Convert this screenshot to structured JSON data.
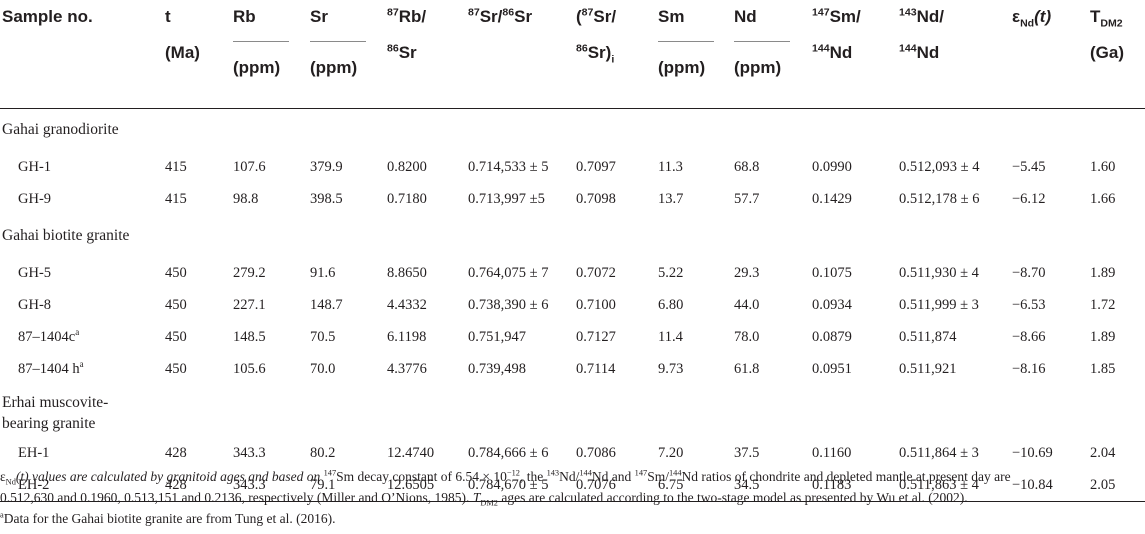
{
  "table": {
    "headers": [
      {
        "key": "sample",
        "line1": "Sample no.",
        "unit": ""
      },
      {
        "key": "t",
        "line1": "t",
        "line2": "(Ma)",
        "unit": ""
      },
      {
        "key": "rb",
        "line1": "Rb",
        "unit": "(ppm)"
      },
      {
        "key": "sr",
        "line1": "Sr",
        "unit": "(ppm)"
      },
      {
        "key": "rbsr",
        "line1_sup": "87",
        "line1_text": "Rb/",
        "line2_sup": "86",
        "line2_text": "Sr",
        "unit": ""
      },
      {
        "key": "srsr",
        "sup1": "87",
        "text1": "Sr/",
        "sup2": "86",
        "text2": "Sr",
        "unit": ""
      },
      {
        "key": "srsr_i",
        "line1_pre": "(",
        "line1_sup": "87",
        "line1_text": "Sr/",
        "line2_sup": "86",
        "line2_text": "Sr)",
        "line2_sub": "i",
        "unit": ""
      },
      {
        "key": "sm",
        "line1": "Sm",
        "unit": "(ppm)"
      },
      {
        "key": "nd",
        "line1": "Nd",
        "unit": "(ppm)"
      },
      {
        "key": "smnd",
        "line1_sup": "147",
        "line1_text": "Sm/",
        "line2_sup": "144",
        "line2_text": "Nd",
        "unit": ""
      },
      {
        "key": "ndnd",
        "line1_sup": "143",
        "line1_text": "Nd/",
        "line2_sup": "144",
        "line2_text": "Nd",
        "unit": ""
      },
      {
        "key": "eps",
        "line1_sym": "ε",
        "line1_sub": "Nd",
        "line1_text": "(t)",
        "unit": ""
      },
      {
        "key": "tdm",
        "line1_text": "T",
        "line1_sub": "DM2",
        "line2": "(Ga)",
        "unit": ""
      }
    ],
    "sections": [
      {
        "title": "Gahai granodiorite",
        "rows": [
          {
            "sample": "GH-1",
            "sample_sup": "",
            "t": "415",
            "rb": "107.6",
            "sr": "379.9",
            "rbsr": "0.8200",
            "srsr": "0.714,533 ± 5",
            "srsr_i": "0.7097",
            "sm": "11.3",
            "nd": "68.8",
            "smnd": "0.0990",
            "ndnd": "0.512,093 ± 4",
            "eps": "−5.45",
            "tdm": "1.60"
          },
          {
            "sample": "GH-9",
            "sample_sup": "",
            "t": "415",
            "rb": "98.8",
            "sr": "398.5",
            "rbsr": "0.7180",
            "srsr": "0.713,997 ±5",
            "srsr_i": "0.7098",
            "sm": "13.7",
            "nd": "57.7",
            "smnd": "0.1429",
            "ndnd": "0.512,178 ± 6",
            "eps": "−6.12",
            "tdm": "1.66"
          }
        ]
      },
      {
        "title": "Gahai biotite granite",
        "rows": [
          {
            "sample": "GH-5",
            "sample_sup": "",
            "t": "450",
            "rb": "279.2",
            "sr": "91.6",
            "rbsr": "8.8650",
            "srsr": "0.764,075 ± 7",
            "srsr_i": "0.7072",
            "sm": "5.22",
            "nd": "29.3",
            "smnd": "0.1075",
            "ndnd": "0.511,930 ± 4",
            "eps": "−8.70",
            "tdm": "1.89"
          },
          {
            "sample": "GH-8",
            "sample_sup": "",
            "t": "450",
            "rb": "227.1",
            "sr": "148.7",
            "rbsr": "4.4332",
            "srsr": "0.738,390 ± 6",
            "srsr_i": "0.7100",
            "sm": "6.80",
            "nd": "44.0",
            "smnd": "0.0934",
            "ndnd": "0.511,999 ± 3",
            "eps": "−6.53",
            "tdm": "1.72"
          },
          {
            "sample": "87–1404c",
            "sample_sup": "a",
            "t": "450",
            "rb": "148.5",
            "sr": "70.5",
            "rbsr": "6.1198",
            "srsr": "0.751,947",
            "srsr_i": "0.7127",
            "sm": "11.4",
            "nd": "78.0",
            "smnd": "0.0879",
            "ndnd": "0.511,874",
            "eps": "−8.66",
            "tdm": "1.89"
          },
          {
            "sample": "87–1404 h",
            "sample_sup": "a",
            "t": "450",
            "rb": "105.6",
            "sr": "70.0",
            "rbsr": "4.3776",
            "srsr": "0.739,498",
            "srsr_i": "0.7114",
            "sm": "9.73",
            "nd": "61.8",
            "smnd": "0.0951",
            "ndnd": "0.511,921",
            "eps": "−8.16",
            "tdm": "1.85"
          }
        ]
      },
      {
        "title_line1": "Erhai muscovite-",
        "title_line2": "bearing granite",
        "rows": [
          {
            "sample": "EH-1",
            "sample_sup": "",
            "t": "428",
            "rb": "343.3",
            "sr": "80.2",
            "rbsr": "12.4740",
            "srsr": "0.784,666 ± 6",
            "srsr_i": "0.7086",
            "sm": "7.20",
            "nd": "37.5",
            "smnd": "0.1160",
            "ndnd": "0.511,864 ± 3",
            "eps": "−10.69",
            "tdm": "2.04"
          },
          {
            "sample": "EH-2",
            "sample_sup": "",
            "t": "428",
            "rb": "343.3",
            "sr": "79.1",
            "rbsr": "12.6505",
            "srsr": "0.784,670 ± 5",
            "srsr_i": "0.7076",
            "sm": "6.75",
            "nd": "34.5",
            "smnd": "0.1183",
            "ndnd": "0.511,863 ± 4",
            "eps": "−10.84",
            "tdm": "2.05"
          }
        ]
      }
    ]
  },
  "footnotes": {
    "n1_sym": "ε",
    "n1_sub": "Nd",
    "n1_a": "(t) values are calculated by granitoid ages and based on ",
    "n1_sup1": "147",
    "n1_b": "Sm decay constant of 6.54 × 10",
    "n1_sup2": "−12",
    "n1_c": ", the ",
    "n1_sup3": "143",
    "n1_d": "Nd/",
    "n1_sup4": "144",
    "n1_e": "Nd and ",
    "n1_sup5": "147",
    "n1_f": "Sm/",
    "n1_sup6": "144",
    "n1_g": "Nd ratios of chondrite and depleted mantle at present day are",
    "n2": "0.512,630 and 0.1960, 0.513,151 and 0.2136, respectively (Miller and O’Nions, 1985). ",
    "n2_t": "T",
    "n2_sub": "DM2",
    "n2_b": " ages are calculated according to the two-stage model as presented by Wu et al. (2002).",
    "n3_sup": "a",
    "n3": "Data for the Gahai biotite granite are from Tung et al. (2016)."
  }
}
